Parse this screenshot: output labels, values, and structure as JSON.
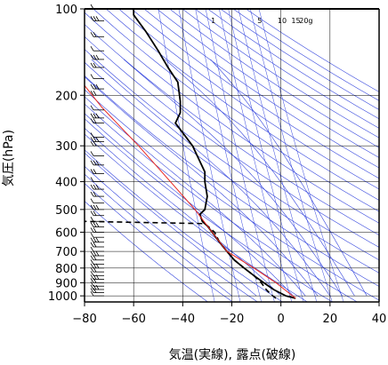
{
  "chart_data": {
    "type": "line",
    "title": "",
    "xlabel": "気温(実線), 露点(破線)",
    "ylabel": "気圧(hPa)",
    "xlim": [
      -80,
      40
    ],
    "ylim": [
      1050,
      100
    ],
    "y_scale": "log",
    "x_ticks": [
      -80,
      -60,
      -40,
      -20,
      0,
      20,
      40
    ],
    "x_tick_labels": [
      "−80",
      "−60",
      "−40",
      "−20",
      "0",
      "20",
      "40"
    ],
    "y_ticks": [
      100,
      200,
      300,
      400,
      500,
      600,
      700,
      800,
      900,
      1000
    ],
    "y_tick_labels": [
      "100",
      "200",
      "300",
      "400",
      "500",
      "600",
      "700",
      "800",
      "900",
      "1000"
    ],
    "grid": true,
    "mixing_ratio_labels": [
      "1",
      "5",
      "10",
      "15",
      "20g"
    ],
    "colors": {
      "isopleths": "#3344dd",
      "parcel": "#e8251f",
      "sounding": "#000000",
      "grid": "#000000"
    },
    "series": [
      {
        "name": "",
        "style": "solid",
        "points": [
          [
            6,
            1020
          ],
          [
            2,
            1000
          ],
          [
            -3,
            950
          ],
          [
            -7,
            900
          ],
          [
            -11,
            850
          ],
          [
            -15,
            800
          ],
          [
            -19,
            750
          ],
          [
            -22,
            700
          ],
          [
            -25,
            650
          ],
          [
            -28,
            600
          ],
          [
            -30,
            570
          ],
          [
            -32,
            550
          ],
          [
            -33,
            520
          ],
          [
            -31,
            500
          ],
          [
            -30,
            450
          ],
          [
            -31,
            400
          ],
          [
            -31,
            370
          ],
          [
            -33,
            340
          ],
          [
            -36,
            300
          ],
          [
            -40,
            270
          ],
          [
            -43,
            250
          ],
          [
            -41,
            230
          ],
          [
            -41,
            210
          ],
          [
            -42,
            180
          ],
          [
            -46,
            160
          ],
          [
            -50,
            140
          ],
          [
            -55,
            120
          ],
          [
            -60,
            105
          ],
          [
            -60,
            100
          ]
        ]
      },
      {
        "name": "",
        "style": "dashed",
        "points": [
          [
            -2,
            1020
          ],
          [
            -4,
            990
          ],
          [
            -6,
            950
          ],
          [
            -8,
            900
          ],
          [
            -11,
            850
          ],
          [
            -15,
            800
          ],
          [
            -19,
            750
          ],
          [
            -22,
            700
          ],
          [
            -25,
            650
          ],
          [
            -27,
            600
          ],
          [
            -31,
            560
          ],
          [
            -80,
            550
          ]
        ]
      },
      {
        "name": "",
        "style": "parcel",
        "points": [
          [
            6,
            1020
          ],
          [
            -2,
            900
          ],
          [
            -11,
            800
          ],
          [
            -22,
            700
          ],
          [
            -28,
            600
          ],
          [
            -35,
            500
          ],
          [
            -45,
            400
          ],
          [
            -58,
            300
          ],
          [
            -73,
            220
          ],
          [
            -80,
            185
          ]
        ]
      }
    ],
    "wind_barb_levels": [
      1000,
      975,
      950,
      925,
      900,
      875,
      850,
      825,
      800,
      775,
      750,
      725,
      700,
      675,
      650,
      625,
      600,
      575,
      550,
      525,
      500,
      475,
      450,
      425,
      400,
      375,
      350,
      325,
      300,
      290,
      280,
      250,
      240,
      225,
      200,
      190,
      175,
      160,
      150,
      140,
      125,
      110,
      100
    ]
  }
}
